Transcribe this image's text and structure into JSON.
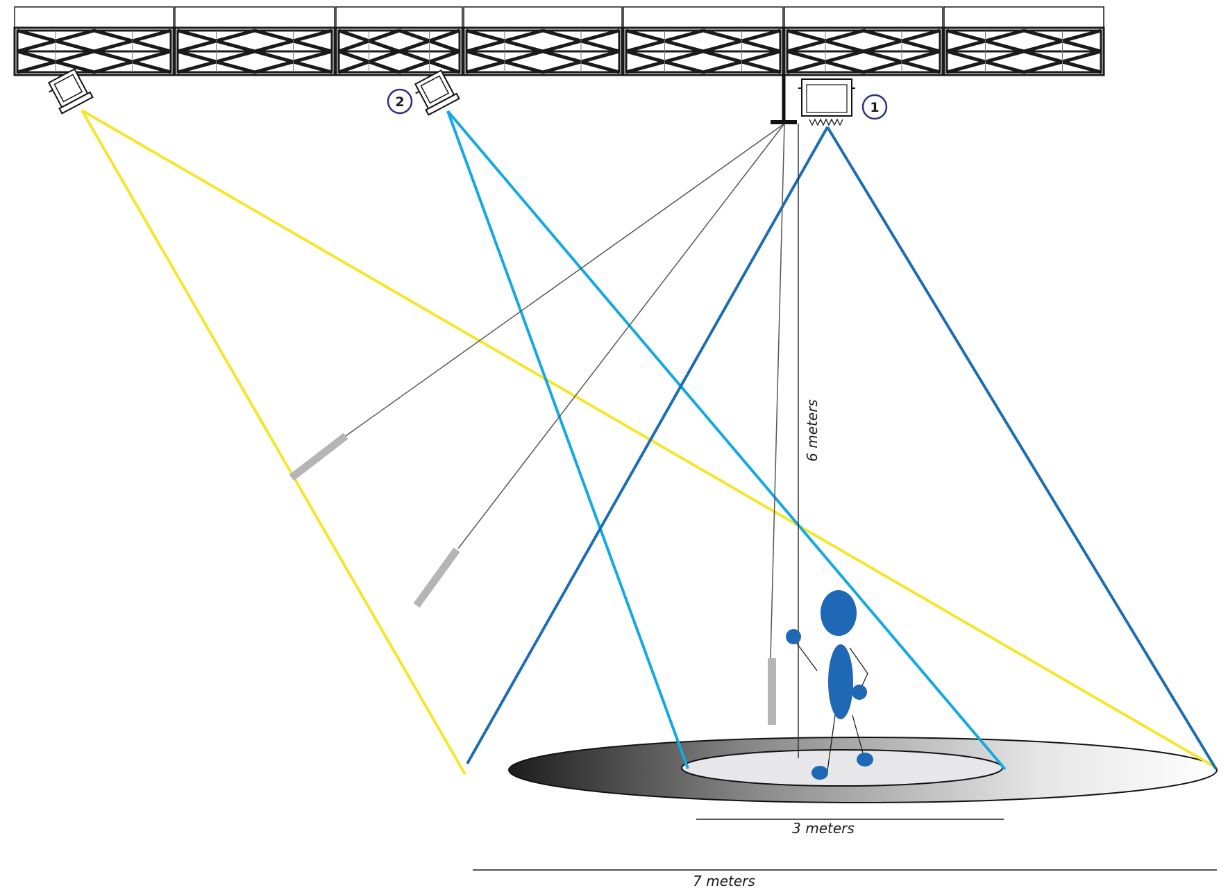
{
  "labels": {
    "height": "6 meters",
    "inner_width": "3 meters",
    "outer_width": "7 meters"
  },
  "markers": {
    "one": "1",
    "two": "2"
  },
  "colors": {
    "beam_yellow": "#f5e62c",
    "beam_light_blue": "#12a9e3",
    "beam_dark_blue": "#1b6db3",
    "figure_blue": "#1f68b5",
    "marker_ring": "#2b2e83",
    "camera_bar": "#b5b5b5",
    "truss": "#1a1a1a"
  },
  "icons": {
    "light_left": "moving-head-light-icon",
    "light_2": "moving-head-light-icon",
    "light_1": "fresnel-light-icon",
    "person": "stick-figure-icon"
  }
}
